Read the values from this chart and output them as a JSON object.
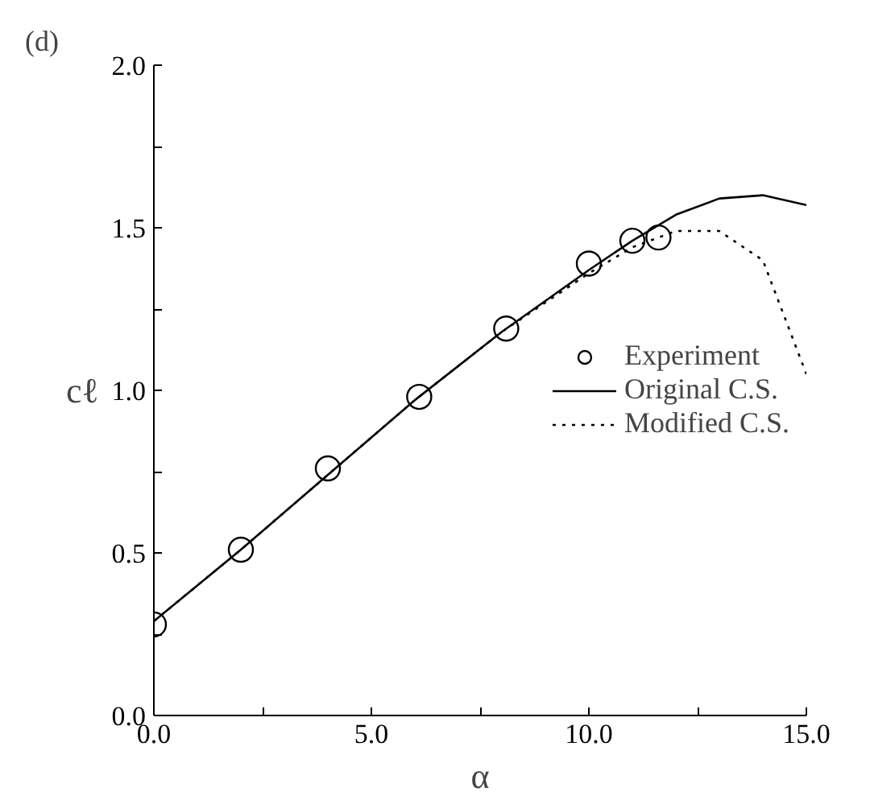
{
  "chart_data": {
    "type": "line",
    "xlabel": "α",
    "ylabel": "cℓ",
    "annotations": [
      "(d)"
    ],
    "xlim": [
      0,
      15
    ],
    "ylim": [
      0,
      2
    ],
    "xticks": [
      {
        "value": 0,
        "label": "0.0"
      },
      {
        "value": 2.5,
        "label": null
      },
      {
        "value": 5,
        "label": "5.0"
      },
      {
        "value": 7.5,
        "label": null
      },
      {
        "value": 10,
        "label": "10.0"
      },
      {
        "value": 12.5,
        "label": null
      },
      {
        "value": 15,
        "label": "15.0"
      }
    ],
    "yticks": [
      {
        "value": 0,
        "label": "0.0"
      },
      {
        "value": 0.25,
        "label": null
      },
      {
        "value": 0.5,
        "label": "0.5"
      },
      {
        "value": 0.75,
        "label": null
      },
      {
        "value": 1,
        "label": "1.0"
      },
      {
        "value": 1.25,
        "label": null
      },
      {
        "value": 1.5,
        "label": "1.5"
      },
      {
        "value": 1.75,
        "label": null
      },
      {
        "value": 2,
        "label": "2.0"
      }
    ],
    "grid": false,
    "legend": "right",
    "series": [
      {
        "name": "Experiment",
        "type": "scatter",
        "marker": "circle",
        "color": "#000000",
        "x": [
          0,
          2,
          4,
          6.1,
          8.1,
          10,
          11,
          11.6
        ],
        "values": [
          0.28,
          0.51,
          0.76,
          0.98,
          1.19,
          1.39,
          1.46,
          1.47
        ]
      },
      {
        "name": "Original C.S.",
        "line_style": "solid",
        "color": "#000000",
        "x": [
          0,
          2,
          4,
          6,
          8,
          10,
          11,
          12,
          13,
          14,
          15
        ],
        "values": [
          0.29,
          0.51,
          0.74,
          0.97,
          1.18,
          1.37,
          1.46,
          1.54,
          1.59,
          1.6,
          1.57
        ]
      },
      {
        "name": "Modified C.S.",
        "line_style": "dotted",
        "color": "#000000",
        "x": [
          0,
          2,
          4,
          6,
          8,
          10,
          11,
          12,
          13,
          14,
          15
        ],
        "values": [
          0.29,
          0.51,
          0.74,
          0.97,
          1.18,
          1.36,
          1.44,
          1.49,
          1.49,
          1.4,
          1.05
        ]
      }
    ]
  }
}
